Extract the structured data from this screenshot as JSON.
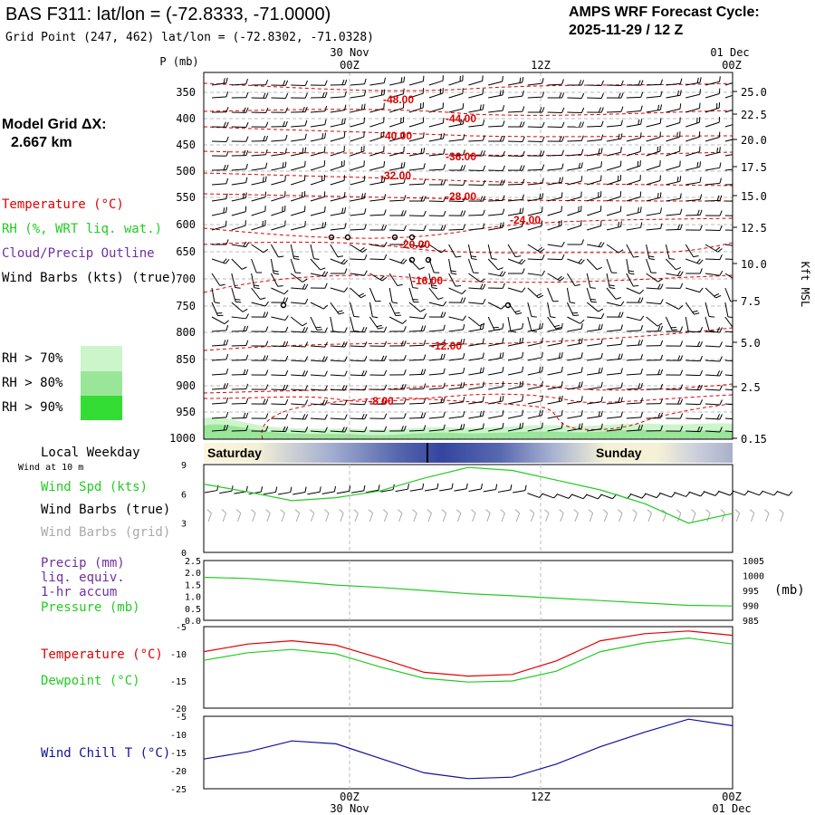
{
  "header": {
    "title": "BAS F311:  lat/lon = (-72.8333, -71.0000)",
    "subtitle": "Grid Point (247, 462) lat/lon = (-72.8302, -71.0328)",
    "cycle_label": "AMPS WRF Forecast Cycle:",
    "cycle_value": "2025-11-29 / 12  Z"
  },
  "model_grid": {
    "label": "Model Grid ΔX:",
    "value": "2.667 km"
  },
  "time_axis": {
    "top_date_mid": "30 Nov",
    "top_date_right": "01 Dec",
    "top_ticks": [
      "00Z",
      "12Z",
      "00Z"
    ],
    "bottom_ticks": [
      "00Z",
      "12Z",
      "00Z"
    ],
    "bottom_date_mid": "30 Nov",
    "bottom_date_right": "01 Dec"
  },
  "legend": {
    "temperature": "Temperature (°C)",
    "rh": "RH (%, WRT liq. wat.)",
    "cloud": "Cloud/Precip Outline",
    "wind": "Wind Barbs (kts) (true)",
    "rh_boxes": [
      {
        "label": "RH > 70%",
        "color": "#ccf5cc"
      },
      {
        "label": "RH > 80%",
        "color": "#99e699"
      },
      {
        "label": "RH > 90%",
        "color": "#33dd33"
      }
    ]
  },
  "colors": {
    "temp_red": "#e00000",
    "green": "#22cc22",
    "blue": "#1010a0",
    "purple": "#7030a0",
    "gray": "#aaaaaa"
  },
  "chart_data": [
    {
      "type": "heatmap",
      "title": "Time-height cross section",
      "ylabel_left": "P (mb)",
      "ylabel_right": "Kft MSL",
      "pressure_ticks": [
        "350",
        "400",
        "450",
        "500",
        "550",
        "600",
        "650",
        "700",
        "750",
        "800",
        "850",
        "900",
        "950",
        "1000"
      ],
      "height_ticks": [
        "25.0",
        "22.5",
        "20.0",
        "17.5",
        "15.0",
        "12.5",
        "10.0",
        "7.5",
        "5.0",
        "2.5",
        "0.15"
      ],
      "isotherm_labels": [
        "-48.00",
        "-44.00",
        "-40.00",
        "-36.00",
        "-32.00",
        "-28.00",
        "-24.00",
        "-20.00",
        "-16.00",
        "-12.00",
        "-8.00"
      ]
    },
    {
      "type": "line",
      "title": "Local Weekday",
      "day_labels": [
        "Saturday",
        "Sunday"
      ],
      "subtitle": "Wind at 10 m",
      "labels": [
        "Wind Spd (kts)",
        "Wind Barbs (true)",
        "Wind Barbs (grid)"
      ],
      "ylim": [
        0,
        9
      ],
      "yticks": [
        "9",
        "6",
        "3",
        "0"
      ],
      "series": [
        {
          "name": "Wind Spd (kts)",
          "x": [
            0,
            3,
            6,
            9,
            12,
            15,
            18,
            21,
            24,
            27,
            30,
            33,
            36
          ],
          "values": [
            7.0,
            6.2,
            5.3,
            5.6,
            6.3,
            7.6,
            8.7,
            8.4,
            7.4,
            6.4,
            5.0,
            3.0,
            4.0
          ]
        }
      ]
    },
    {
      "type": "line",
      "labels": [
        "Precip (mm)",
        "liq. equiv.",
        "1-hr accum",
        "Pressure (mb)"
      ],
      "left_ylim": [
        0,
        2.5
      ],
      "left_ticks": [
        "2.5",
        "2.0",
        "1.5",
        "1.0",
        "0.5",
        "0.0"
      ],
      "right_ylim": [
        985,
        1005
      ],
      "right_ticks": [
        "1005",
        "1000",
        "995",
        "990",
        "985"
      ],
      "right_unit": "(mb)",
      "series": [
        {
          "name": "Pressure (mb)",
          "x": [
            0,
            3,
            6,
            9,
            12,
            15,
            18,
            21,
            24,
            27,
            30,
            33,
            36
          ],
          "values": [
            999.4,
            999.0,
            998.0,
            996.8,
            996.0,
            995.0,
            993.9,
            993.2,
            992.4,
            991.6,
            990.8,
            990.0,
            989.8
          ]
        }
      ]
    },
    {
      "type": "line",
      "labels": [
        "Temperature (°C)",
        "Dewpoint (°C)"
      ],
      "ylim": [
        -20,
        -5
      ],
      "yticks": [
        "-5",
        "-10",
        "-15",
        "-20"
      ],
      "series": [
        {
          "name": "Temperature (°C)",
          "x": [
            0,
            3,
            6,
            9,
            12,
            15,
            18,
            21,
            24,
            27,
            30,
            33,
            36
          ],
          "values": [
            -9.6,
            -8.2,
            -7.6,
            -8.4,
            -10.8,
            -13.4,
            -14.1,
            -13.8,
            -11.3,
            -7.6,
            -6.3,
            -5.8,
            -6.6
          ]
        },
        {
          "name": "Dewpoint (°C)",
          "x": [
            0,
            3,
            6,
            9,
            12,
            15,
            18,
            21,
            24,
            27,
            30,
            33,
            36
          ],
          "values": [
            -11.2,
            -9.8,
            -9.2,
            -10.0,
            -12.4,
            -14.5,
            -15.2,
            -15.0,
            -13.2,
            -9.6,
            -8.0,
            -7.1,
            -8.2
          ]
        }
      ]
    },
    {
      "type": "line",
      "labels": [
        "Wind Chill T (°C)"
      ],
      "ylim": [
        -25,
        -5
      ],
      "yticks": [
        "-5",
        "-10",
        "-15",
        "-20",
        "-25"
      ],
      "series": [
        {
          "name": "Wind Chill T (°C)",
          "x": [
            0,
            3,
            6,
            9,
            12,
            15,
            18,
            21,
            24,
            27,
            30,
            33,
            36
          ],
          "values": [
            -16.8,
            -14.8,
            -11.8,
            -12.6,
            -16.6,
            -20.6,
            -22.2,
            -21.8,
            -18.2,
            -13.4,
            -9.4,
            -5.8,
            -7.6
          ]
        }
      ]
    }
  ]
}
